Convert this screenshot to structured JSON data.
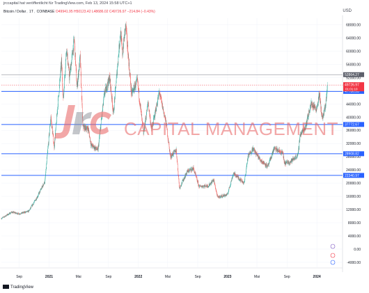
{
  "header": {
    "published": "jrccapital hat veröffentlicht für TradingView.com, Feb 13, 2024 15:58 UTC+1",
    "currency": "USD"
  },
  "legend": {
    "symbol": "Bitcoin / Dollar",
    "interval": "1T",
    "exchange": "COINBASE",
    "ohlc": "O49941.95 H50123.42 L48686.02 C49726.97 −214.84 (−0.43%)"
  },
  "watermark": {
    "text": "CAPITAL MANAGEMENT"
  },
  "footer": {
    "brand": "TradingView"
  },
  "colors": {
    "up": "#26a69a",
    "down": "#ef5350",
    "level_line": "#2962ff",
    "current_price_tag": "#f23645",
    "watermark": "#e85f5f"
  },
  "chart_data": {
    "type": "candlestick",
    "symbol": "Bitcoin / Dollar",
    "y_axis": {
      "ticks": [
        -4000,
        0,
        4000,
        8000,
        12000,
        16000,
        20000,
        24000,
        28000,
        32000,
        36000,
        40000,
        44000,
        48000,
        52000,
        56000,
        60000,
        64000,
        68000
      ],
      "tick_labels": [
        "-4000.00",
        "0.00",
        "4000.00",
        "8000.00",
        "12000.00",
        "16000.00",
        "20000.00",
        "24000.00",
        "28000.00",
        "32000.00",
        "36000.00",
        "40000.00",
        "44000.00",
        "48000.00",
        "52000.00",
        "56000.00",
        "60000.00",
        "64000.00",
        "68000.00"
      ],
      "range": [
        -5700,
        70000
      ]
    },
    "x_axis": {
      "ticks": [
        {
          "label": "Sep",
          "date": "2020-09-01"
        },
        {
          "label": "2021",
          "date": "2021-01-01"
        },
        {
          "label": "Mai",
          "date": "2021-05-01"
        },
        {
          "label": "Sep",
          "date": "2021-09-01"
        },
        {
          "label": "2022",
          "date": "2022-01-01"
        },
        {
          "label": "Mai",
          "date": "2022-05-01"
        },
        {
          "label": "Sep",
          "date": "2022-09-01"
        },
        {
          "label": "2023",
          "date": "2023-01-01"
        },
        {
          "label": "Mai",
          "date": "2023-05-01"
        },
        {
          "label": "Sep",
          "date": "2023-09-01"
        },
        {
          "label": "2024",
          "date": "2024-01-01"
        }
      ],
      "range": [
        "2020-06-20",
        "2024-04-15"
      ]
    },
    "levels": [
      {
        "price": 52864.27,
        "label": "52864.27",
        "style": "gray"
      },
      {
        "price": 47786.28,
        "label": "47786.28",
        "style": "blue"
      },
      {
        "price": 37772.67,
        "label": "37772.67",
        "style": "blue"
      },
      {
        "price": 28908.82,
        "label": "28908.82",
        "style": "blue"
      },
      {
        "price": 22340.97,
        "label": "22340.97",
        "style": "blue"
      }
    ],
    "current_price": {
      "price": 49726.97,
      "label": "49726.97",
      "countdown": "01:01:10"
    },
    "price_path": [
      {
        "date": "2020-06-20",
        "price": 9300
      },
      {
        "date": "2020-08-01",
        "price": 11200
      },
      {
        "date": "2020-09-01",
        "price": 10700
      },
      {
        "date": "2020-10-10",
        "price": 11500
      },
      {
        "date": "2020-11-15",
        "price": 16000
      },
      {
        "date": "2020-12-15",
        "price": 20500
      },
      {
        "date": "2021-01-08",
        "price": 40000
      },
      {
        "date": "2021-01-22",
        "price": 31000
      },
      {
        "date": "2021-02-21",
        "price": 57000
      },
      {
        "date": "2021-02-28",
        "price": 45000
      },
      {
        "date": "2021-03-13",
        "price": 61000
      },
      {
        "date": "2021-03-25",
        "price": 52000
      },
      {
        "date": "2021-04-14",
        "price": 63500
      },
      {
        "date": "2021-04-25",
        "price": 49000
      },
      {
        "date": "2021-05-08",
        "price": 58000
      },
      {
        "date": "2021-05-19",
        "price": 37000
      },
      {
        "date": "2021-06-10",
        "price": 36500
      },
      {
        "date": "2021-06-22",
        "price": 31500
      },
      {
        "date": "2021-07-20",
        "price": 30000
      },
      {
        "date": "2021-08-15",
        "price": 47000
      },
      {
        "date": "2021-09-06",
        "price": 52000
      },
      {
        "date": "2021-09-21",
        "price": 41000
      },
      {
        "date": "2021-10-20",
        "price": 66000
      },
      {
        "date": "2021-10-28",
        "price": 59000
      },
      {
        "date": "2021-11-10",
        "price": 68000
      },
      {
        "date": "2021-12-04",
        "price": 47000
      },
      {
        "date": "2021-12-28",
        "price": 51000
      },
      {
        "date": "2022-01-22",
        "price": 35000
      },
      {
        "date": "2022-02-10",
        "price": 44500
      },
      {
        "date": "2022-02-24",
        "price": 36000
      },
      {
        "date": "2022-03-28",
        "price": 47500
      },
      {
        "date": "2022-04-25",
        "price": 38000
      },
      {
        "date": "2022-05-12",
        "price": 28000
      },
      {
        "date": "2022-06-05",
        "price": 30000
      },
      {
        "date": "2022-06-18",
        "price": 18500
      },
      {
        "date": "2022-07-20",
        "price": 23500
      },
      {
        "date": "2022-08-14",
        "price": 24500
      },
      {
        "date": "2022-09-06",
        "price": 19000
      },
      {
        "date": "2022-10-15",
        "price": 19200
      },
      {
        "date": "2022-11-05",
        "price": 21000
      },
      {
        "date": "2022-11-21",
        "price": 15700
      },
      {
        "date": "2022-12-31",
        "price": 16500
      },
      {
        "date": "2023-01-25",
        "price": 23000
      },
      {
        "date": "2023-03-10",
        "price": 20000
      },
      {
        "date": "2023-03-25",
        "price": 28000
      },
      {
        "date": "2023-04-14",
        "price": 30500
      },
      {
        "date": "2023-05-15",
        "price": 27000
      },
      {
        "date": "2023-06-15",
        "price": 25000
      },
      {
        "date": "2023-07-10",
        "price": 30500
      },
      {
        "date": "2023-08-16",
        "price": 29000
      },
      {
        "date": "2023-08-20",
        "price": 26000
      },
      {
        "date": "2023-09-15",
        "price": 26500
      },
      {
        "date": "2023-10-16",
        "price": 28500
      },
      {
        "date": "2023-10-24",
        "price": 34500
      },
      {
        "date": "2023-11-15",
        "price": 37000
      },
      {
        "date": "2023-12-08",
        "price": 44000
      },
      {
        "date": "2023-12-31",
        "price": 42500
      },
      {
        "date": "2024-01-11",
        "price": 47000
      },
      {
        "date": "2024-01-23",
        "price": 39500
      },
      {
        "date": "2024-02-05",
        "price": 43000
      },
      {
        "date": "2024-02-13",
        "price": 49726.97
      }
    ]
  }
}
